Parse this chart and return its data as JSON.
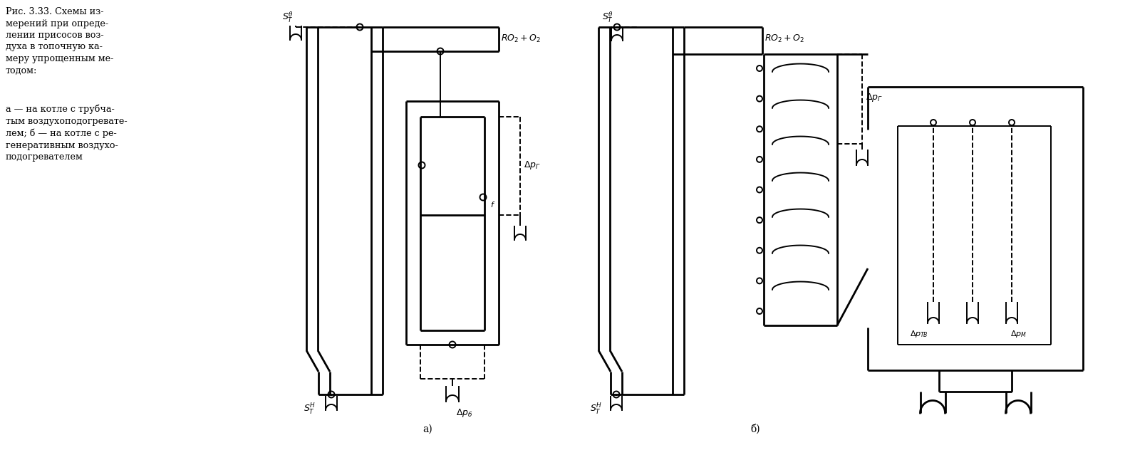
{
  "title": "Рис. 3.33. Схемы из-\nмерений при опреде-\nлении присосов воз-\nдуха в топочную ка-\nмеру упрощенным ме-\nтодом:",
  "subtitle_a": "а — на котле с трубча-\nтым воздухоподогревате-\nлем; б — на котле с ре-\nгенеративным воздухо-\nподогревателем",
  "bg_color": "#ffffff",
  "line_color": "#000000",
  "lw_thin": 1.4,
  "lw_thick": 2.0
}
